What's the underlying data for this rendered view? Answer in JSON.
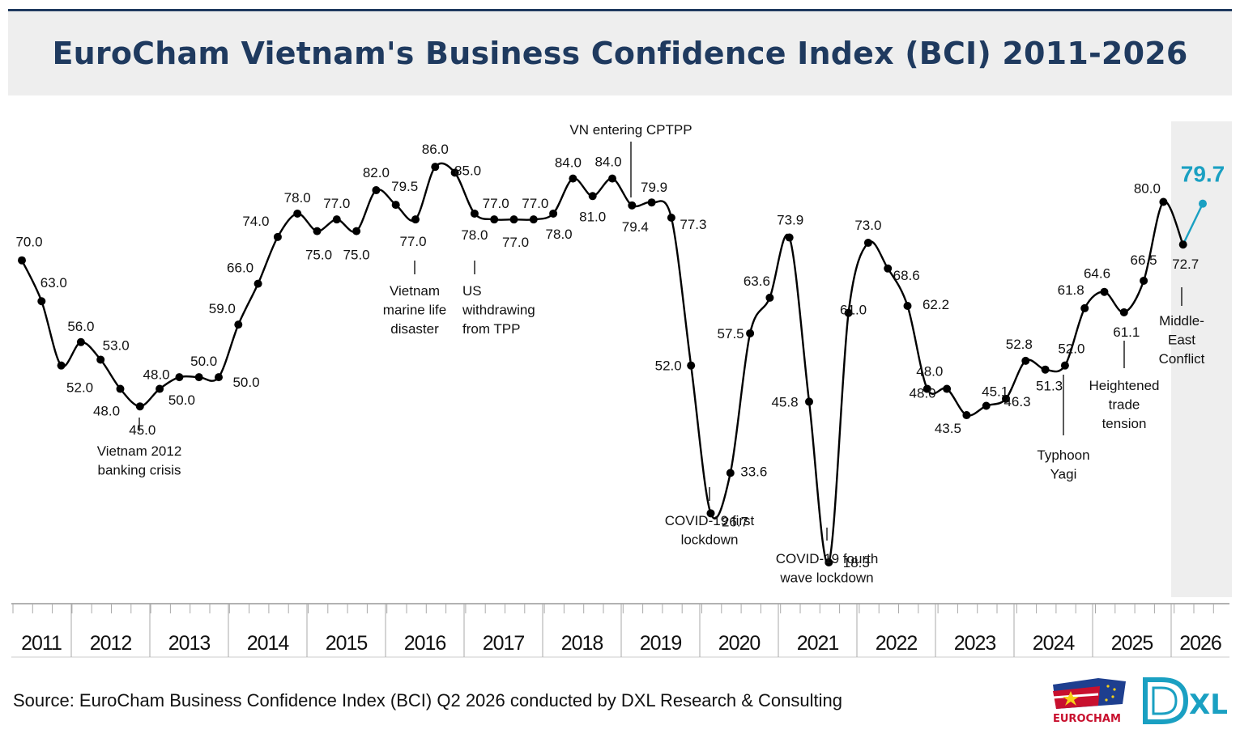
{
  "title": "EuroCham Vietnam's Business Confidence Index (BCI) 2011-2026",
  "source": "Source: EuroCham Business Confidence Index (BCI) Q2 2026 conducted by DXL Research & Consulting",
  "logos": {
    "eurocham": "EUROCHAM",
    "dxl": "XL"
  },
  "colors": {
    "line": "#000000",
    "highlight": "#1aa0c2",
    "title": "#1f3a5f",
    "shade": "#eeeeee"
  },
  "chart_data": {
    "type": "line",
    "title": "EuroCham Vietnam's Business Confidence Index (BCI) 2011-2026",
    "x_unit": "quarter",
    "years": [
      "2011",
      "2012",
      "2013",
      "2014",
      "2015",
      "2016",
      "2017",
      "2018",
      "2019",
      "2020",
      "2021",
      "2022",
      "2023",
      "2024",
      "2025",
      "2026"
    ],
    "series": [
      {
        "values": [
          70.0,
          63.0,
          52.0,
          56.0,
          53.0,
          48.0,
          45.0,
          48.0,
          50.0,
          50.0,
          50.0,
          59.0,
          66.0,
          74.0,
          78.0,
          75.0,
          77.0,
          75.0,
          82.0,
          79.5,
          77.0,
          86.0,
          85.0,
          78.0,
          77.0,
          77.0,
          77.0,
          78.0,
          84.0,
          81.0,
          84.0,
          79.4,
          79.9,
          77.3,
          52.0,
          26.7,
          33.6,
          57.5,
          63.6,
          73.9,
          45.8,
          18.3,
          61.0,
          73.0,
          68.6,
          62.2,
          48.0,
          48.0,
          43.5,
          45.1,
          46.3,
          52.8,
          51.3,
          52.0,
          61.8,
          64.6,
          61.1,
          66.5,
          80.0,
          72.7,
          79.7
        ],
        "labels": [
          "70.0",
          "63.0",
          "52.0",
          "56.0",
          "53.0",
          "48.0",
          "45.0",
          "48.0",
          "50.0",
          "50.0",
          "50.0",
          "59.0",
          "66.0",
          "74.0",
          "78.0",
          "75.0",
          "77.0",
          "75.0",
          "82.0",
          "79.5",
          "77.0",
          "86.0",
          "85.0",
          "78.0",
          "77.0",
          "77.0",
          "77.0",
          "78.0",
          "84.0",
          "81.0",
          "84.0",
          "79.4",
          "79.9",
          "77.3",
          "52.0",
          "26.7",
          "33.6",
          "57.5",
          "63.6",
          "73.9",
          "45.8",
          "18.3",
          "61.0",
          "73.0",
          "68.6",
          "62.2",
          "48.0",
          "48.0",
          "43.5",
          "45.1",
          "46.3",
          "52.8",
          "51.3",
          "52.0",
          "61.8",
          "64.6",
          "61.1",
          "66.5",
          "80.0",
          "72.7",
          "79.7"
        ]
      }
    ],
    "highlight": {
      "label": "79.7"
    },
    "annotations": [
      {
        "lines": [
          "Vietnam 2012",
          "banking crisis"
        ]
      },
      {
        "lines": [
          "Vietnam",
          "marine life",
          "disaster"
        ]
      },
      {
        "lines": [
          "US",
          "withdrawing",
          "from TPP"
        ]
      },
      {
        "lines": [
          "VN entering CPTPP"
        ]
      },
      {
        "lines": [
          "COVID-19 first",
          "lockdown"
        ]
      },
      {
        "lines": [
          "COVID-19 fourth",
          "wave lockdown"
        ]
      },
      {
        "lines": [
          "Typhoon",
          "Yagi"
        ]
      },
      {
        "lines": [
          "Heightened",
          "trade",
          "tension"
        ]
      },
      {
        "lines": [
          "Middle-",
          "East",
          "Conflict"
        ]
      }
    ]
  }
}
